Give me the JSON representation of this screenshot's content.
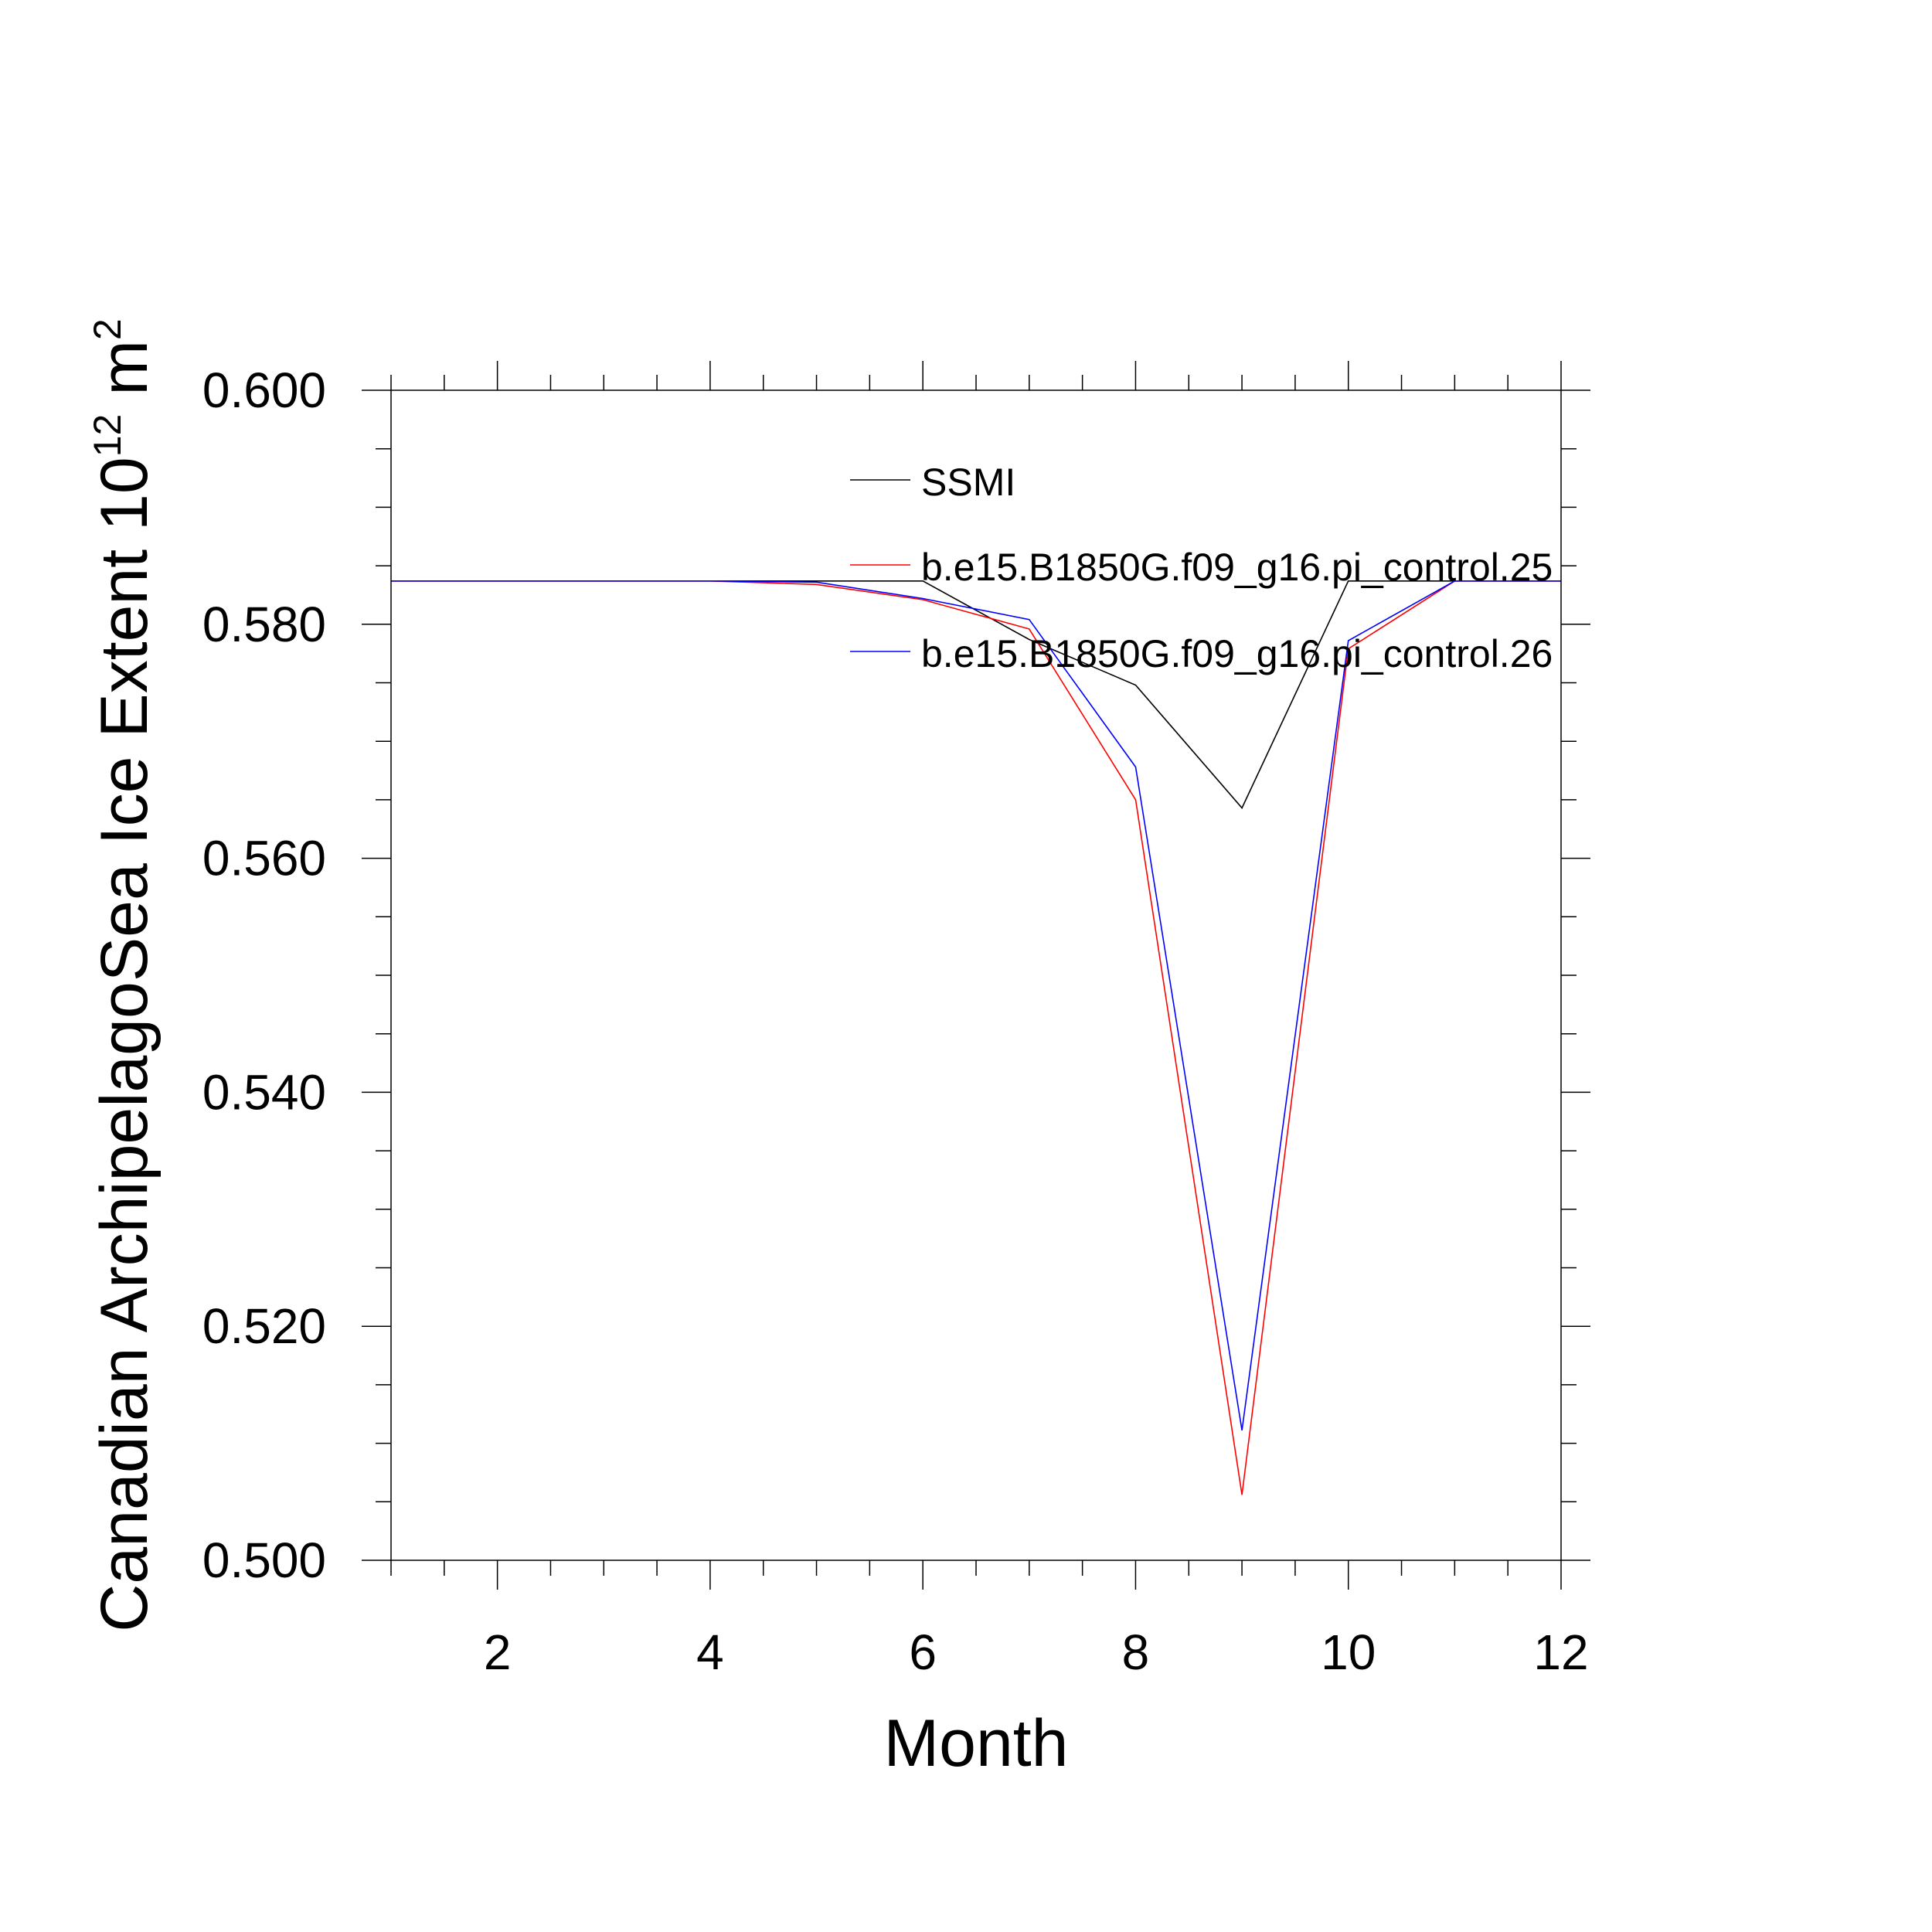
{
  "chart_data": {
    "type": "line",
    "title": "",
    "xlabel": "Month",
    "ylabel_main": "Canadian ArchipelagoSea Ice Extent 10",
    "ylabel_sup": "12",
    "ylabel_unit": " m",
    "ylabel_unit_sup": "2",
    "xlim": [
      1,
      12
    ],
    "ylim": [
      0.5,
      0.6
    ],
    "x_ticks": [
      2,
      4,
      6,
      8,
      10,
      12
    ],
    "x_tick_labels": [
      "2",
      "4",
      "6",
      "8",
      "10",
      "12"
    ],
    "y_ticks": [
      0.5,
      0.52,
      0.54,
      0.56,
      0.58,
      0.6
    ],
    "y_tick_labels": [
      "0.500",
      "0.520",
      "0.540",
      "0.560",
      "0.580",
      "0.600"
    ],
    "x_minor_step": 0.5,
    "y_minor_step": 0.005,
    "grid": false,
    "legend_position": "top-right",
    "x": [
      1,
      2,
      3,
      4,
      5,
      6,
      7,
      8,
      9,
      10,
      11,
      12
    ],
    "series": [
      {
        "name": "SSMI",
        "color": "#000000",
        "values": [
          0.5837,
          0.5837,
          0.5837,
          0.5837,
          0.5837,
          0.5837,
          0.5787,
          0.5748,
          0.5643,
          0.5837,
          0.5837,
          0.5837
        ]
      },
      {
        "name": "b.e15.B1850G.f09_g16.pi_control.25",
        "color": "#ff0000",
        "values": [
          0.5837,
          0.5837,
          0.5837,
          0.5837,
          0.5834,
          0.5821,
          0.5796,
          0.565,
          0.5056,
          0.5779,
          0.5837,
          0.5837
        ]
      },
      {
        "name": "b.e15.B1850G.f09_g16.pi_control.26",
        "color": "#0000ff",
        "values": [
          0.5837,
          0.5837,
          0.5837,
          0.5837,
          0.5836,
          0.5822,
          0.5804,
          0.5678,
          0.5111,
          0.5786,
          0.5837,
          0.5837
        ]
      }
    ]
  }
}
